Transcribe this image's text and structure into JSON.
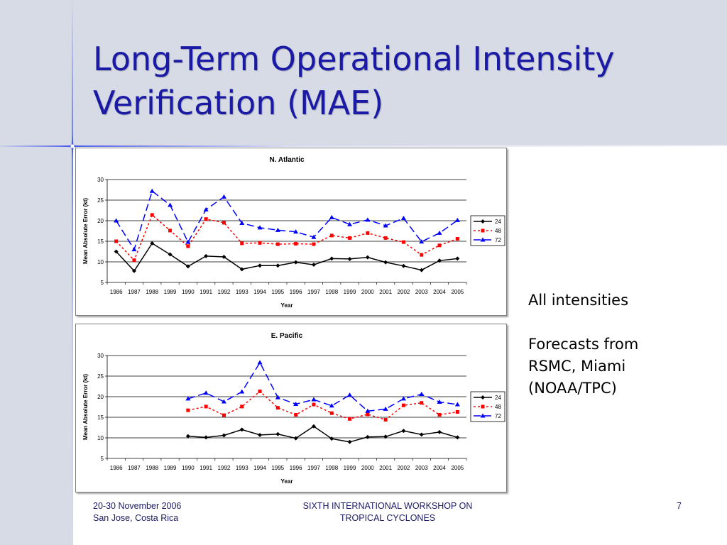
{
  "slide": {
    "title_line1": "Long-Term Operational Intensity",
    "title_line2": "Verification (MAE)",
    "side_text": [
      "All intensities",
      "Forecasts from",
      "RSMC, Miami",
      "(NOAA/TPC)"
    ],
    "footer_left": [
      "20-30 November 2006",
      "San Jose, Costa Rica"
    ],
    "footer_center": [
      "SIXTH INTERNATIONAL WORKSHOP ON",
      "TROPICAL CYCLONES"
    ],
    "page_number": "7"
  },
  "colors": {
    "title": "#1a1aa6",
    "background_band": "#d6dbe6",
    "series_24": "#000000",
    "series_48": "#ff0000",
    "series_72": "#0000ff"
  },
  "chart_data": [
    {
      "type": "line",
      "title": "N. Atlantic",
      "xlabel": "Year",
      "ylabel": "Mean Absolute Error (kt)",
      "ylim": [
        5,
        30
      ],
      "yticks": [
        5,
        10,
        15,
        20,
        25,
        30
      ],
      "grid": "horizontal",
      "legend": "right",
      "categories": [
        "1986",
        "1987",
        "1988",
        "1989",
        "1990",
        "1991",
        "1992",
        "1993",
        "1994",
        "1995",
        "1996",
        "1997",
        "1998",
        "1999",
        "2000",
        "2001",
        "2002",
        "2003",
        "2004",
        "2005"
      ],
      "series": [
        {
          "name": "24",
          "color": "#000000",
          "dash": "solid",
          "marker": "diamond",
          "values": [
            12.5,
            7.8,
            14.5,
            11.8,
            8.9,
            11.4,
            11.2,
            8.2,
            9.1,
            9.1,
            9.9,
            9.3,
            10.8,
            10.7,
            11.1,
            9.9,
            9.0,
            8.0,
            10.3,
            10.8
          ]
        },
        {
          "name": "48",
          "color": "#ff0000",
          "dash": "dotted",
          "marker": "square",
          "values": [
            15.0,
            10.4,
            21.4,
            17.6,
            13.8,
            20.4,
            19.5,
            14.5,
            14.6,
            14.3,
            14.4,
            14.3,
            16.4,
            15.8,
            17.0,
            15.8,
            14.8,
            11.7,
            14.0,
            15.6
          ]
        },
        {
          "name": "72",
          "color": "#0000ff",
          "dash": "dashed",
          "marker": "triangle",
          "values": [
            20.0,
            13.0,
            27.2,
            23.8,
            14.8,
            22.7,
            25.8,
            19.4,
            18.3,
            17.7,
            17.3,
            16.0,
            20.8,
            19.1,
            20.2,
            18.8,
            20.6,
            14.9,
            17.0,
            20.1
          ]
        }
      ]
    },
    {
      "type": "line",
      "title": "E. Pacific",
      "xlabel": "Year",
      "ylabel": "Mean Absolute Error (kt)",
      "ylim": [
        5,
        30
      ],
      "yticks": [
        5,
        10,
        15,
        20,
        25,
        30
      ],
      "grid": "horizontal",
      "legend": "right",
      "categories": [
        "1986",
        "1987",
        "1988",
        "1989",
        "1990",
        "1991",
        "1992",
        "1993",
        "1994",
        "1995",
        "1996",
        "1997",
        "1998",
        "1999",
        "2000",
        "2001",
        "2002",
        "2003",
        "2004",
        "2005"
      ],
      "series": [
        {
          "name": "24",
          "color": "#000000",
          "dash": "solid",
          "marker": "diamond",
          "values": [
            null,
            null,
            null,
            null,
            10.4,
            10.1,
            10.6,
            12.0,
            10.7,
            10.9,
            9.9,
            12.8,
            9.8,
            9.0,
            10.2,
            10.3,
            11.7,
            10.8,
            11.4,
            10.1
          ]
        },
        {
          "name": "48",
          "color": "#ff0000",
          "dash": "dotted",
          "marker": "square",
          "values": [
            null,
            null,
            null,
            null,
            16.7,
            17.6,
            15.5,
            17.6,
            21.3,
            17.3,
            15.6,
            18.1,
            16.0,
            14.6,
            15.7,
            14.4,
            17.9,
            18.5,
            15.6,
            16.3
          ]
        },
        {
          "name": "72",
          "color": "#0000ff",
          "dash": "dashed",
          "marker": "triangle",
          "values": [
            null,
            null,
            null,
            null,
            19.5,
            20.9,
            18.8,
            21.2,
            28.3,
            19.8,
            18.2,
            19.3,
            17.8,
            20.4,
            16.5,
            17.0,
            19.5,
            20.6,
            18.7,
            18.1
          ]
        }
      ]
    }
  ]
}
